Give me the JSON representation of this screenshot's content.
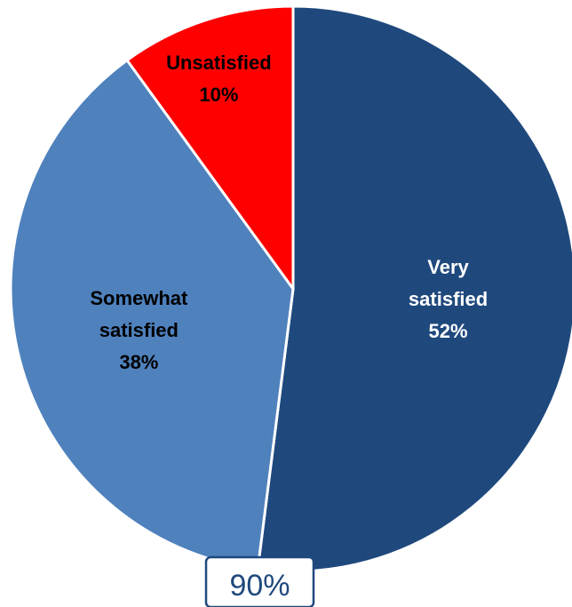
{
  "chart_data": {
    "type": "pie",
    "title": "",
    "start": "top",
    "direction": "clockwise",
    "slices": [
      {
        "label_lines": [
          "Very",
          "satisfied"
        ],
        "value": 52,
        "value_label": "52%",
        "color": "#1F497D",
        "label_color": "#FFFFFF"
      },
      {
        "label_lines": [
          "Somewhat",
          "satisfied"
        ],
        "value": 38,
        "value_label": "38%",
        "color": "#4F81BD",
        "label_color": "#000000"
      },
      {
        "label_lines": [
          "Unsatisfied"
        ],
        "value": 10,
        "value_label": "10%",
        "color": "#FF0000",
        "label_color": "#000000"
      }
    ],
    "callout": {
      "text": "90%",
      "border_color": "#1F497D",
      "text_color": "#1F497D"
    },
    "slice_border_color": "#FFFFFF"
  }
}
